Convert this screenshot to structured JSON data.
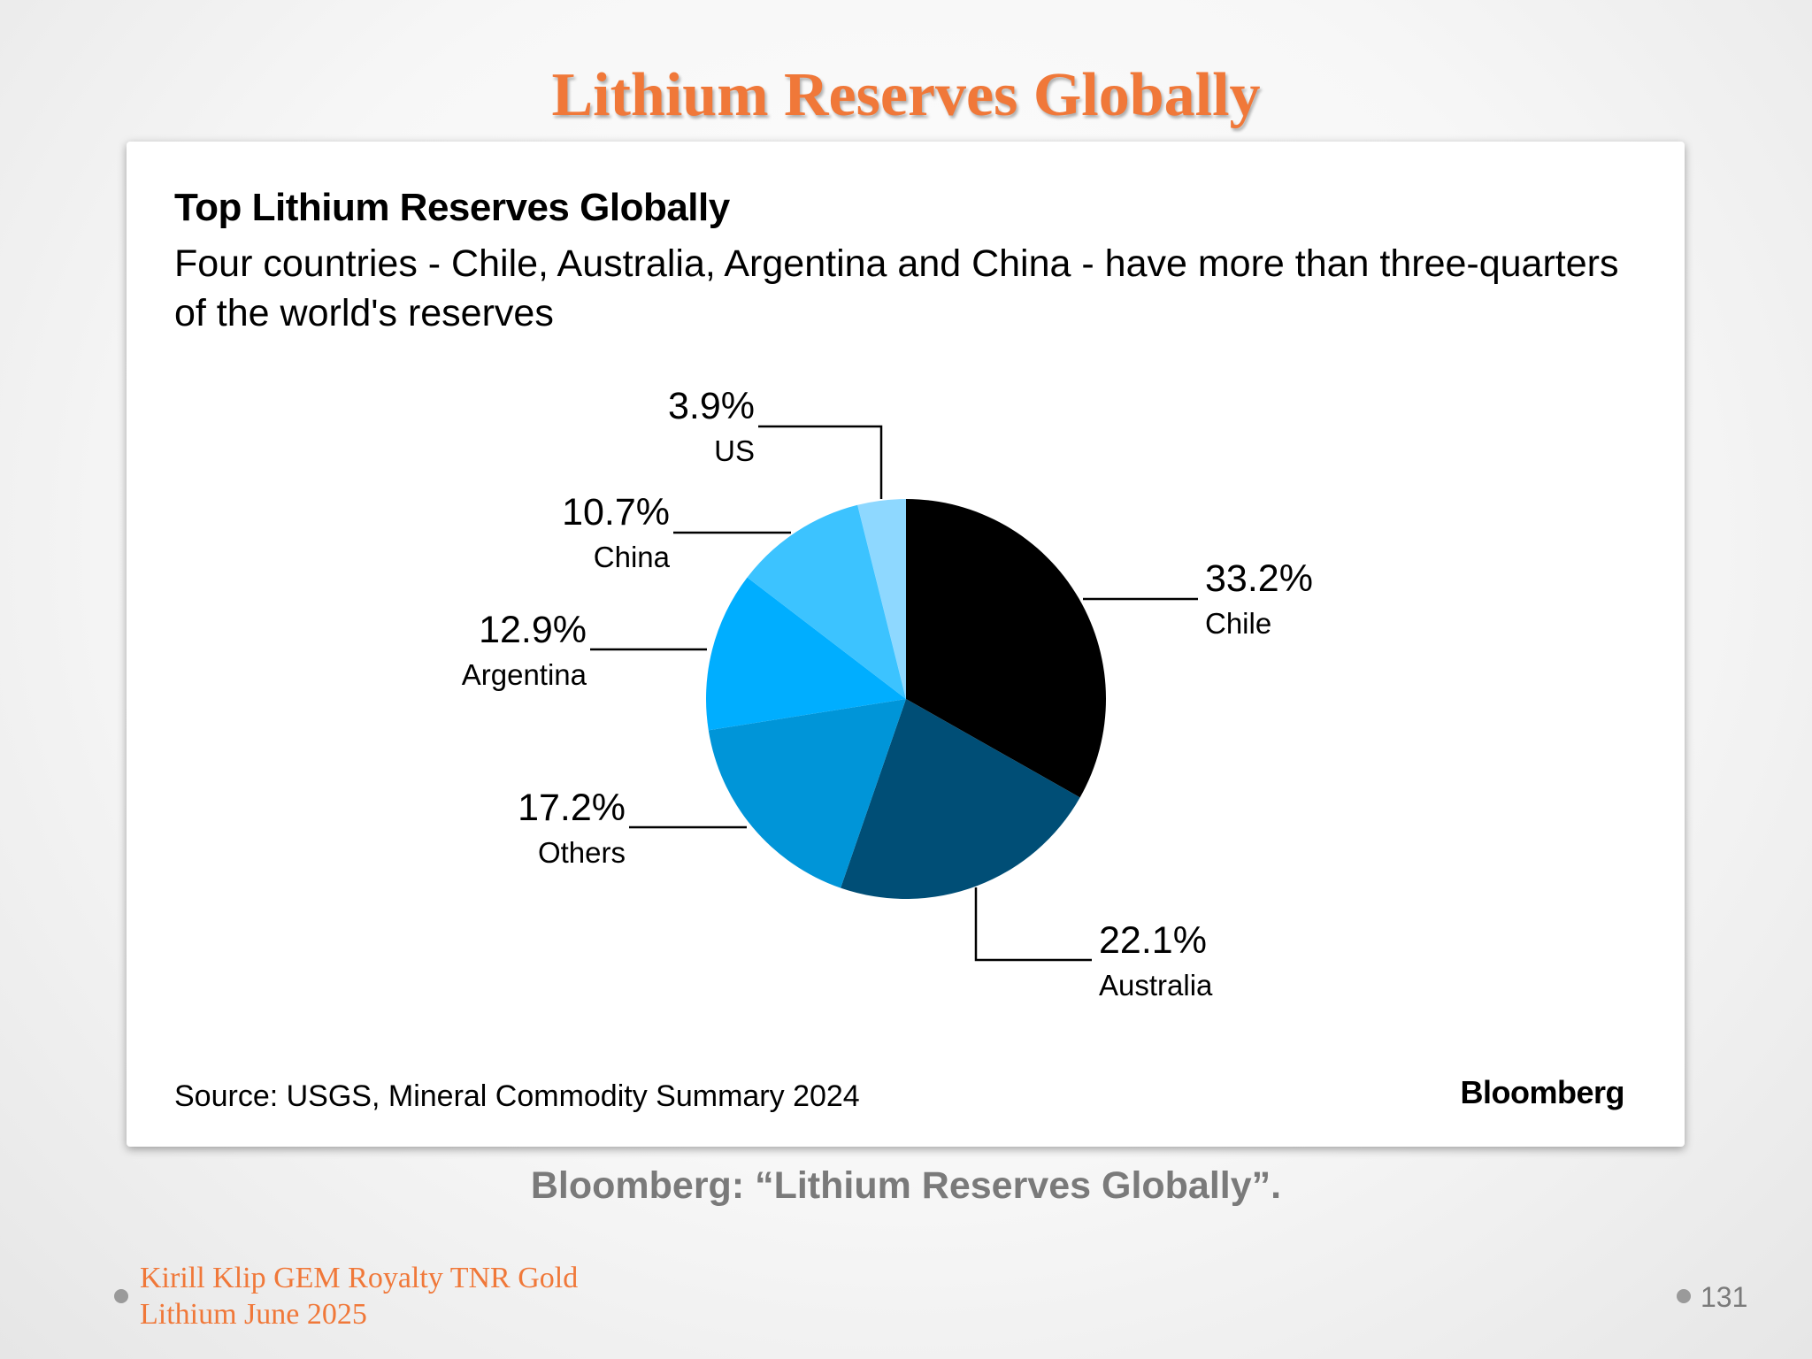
{
  "slide": {
    "title": "Lithium Reserves Globally",
    "caption": "Bloomberg: “Lithium Reserves Globally”.",
    "footer_line1": "Kirill Klip GEM Royalty TNR Gold",
    "footer_line2": "Lithium June 2025",
    "page_number": "131",
    "accent_color": "#f07839"
  },
  "chart_data": {
    "type": "pie",
    "title": "Top Lithium Reserves Globally",
    "subtitle": "Four countries - Chile, Australia, Argentina and China - have more than three-quarters of the world's reserves",
    "source": "Source: USGS, Mineral Commodity Summary 2024",
    "brand": "Bloomberg",
    "start_angle": "12 o'clock",
    "direction": "clockwise",
    "slices": [
      {
        "label": "Chile",
        "value": 33.2,
        "value_label": "33.2%",
        "color": "#000000"
      },
      {
        "label": "Australia",
        "value": 22.1,
        "value_label": "22.1%",
        "color": "#004e76"
      },
      {
        "label": "Others",
        "value": 17.2,
        "value_label": "17.2%",
        "color": "#0095d8"
      },
      {
        "label": "Argentina",
        "value": 12.9,
        "value_label": "12.9%",
        "color": "#00aeff"
      },
      {
        "label": "China",
        "value": 10.7,
        "value_label": "10.7%",
        "color": "#3cc3ff"
      },
      {
        "label": "US",
        "value": 3.9,
        "value_label": "3.9%",
        "color": "#8ed8ff"
      }
    ]
  }
}
